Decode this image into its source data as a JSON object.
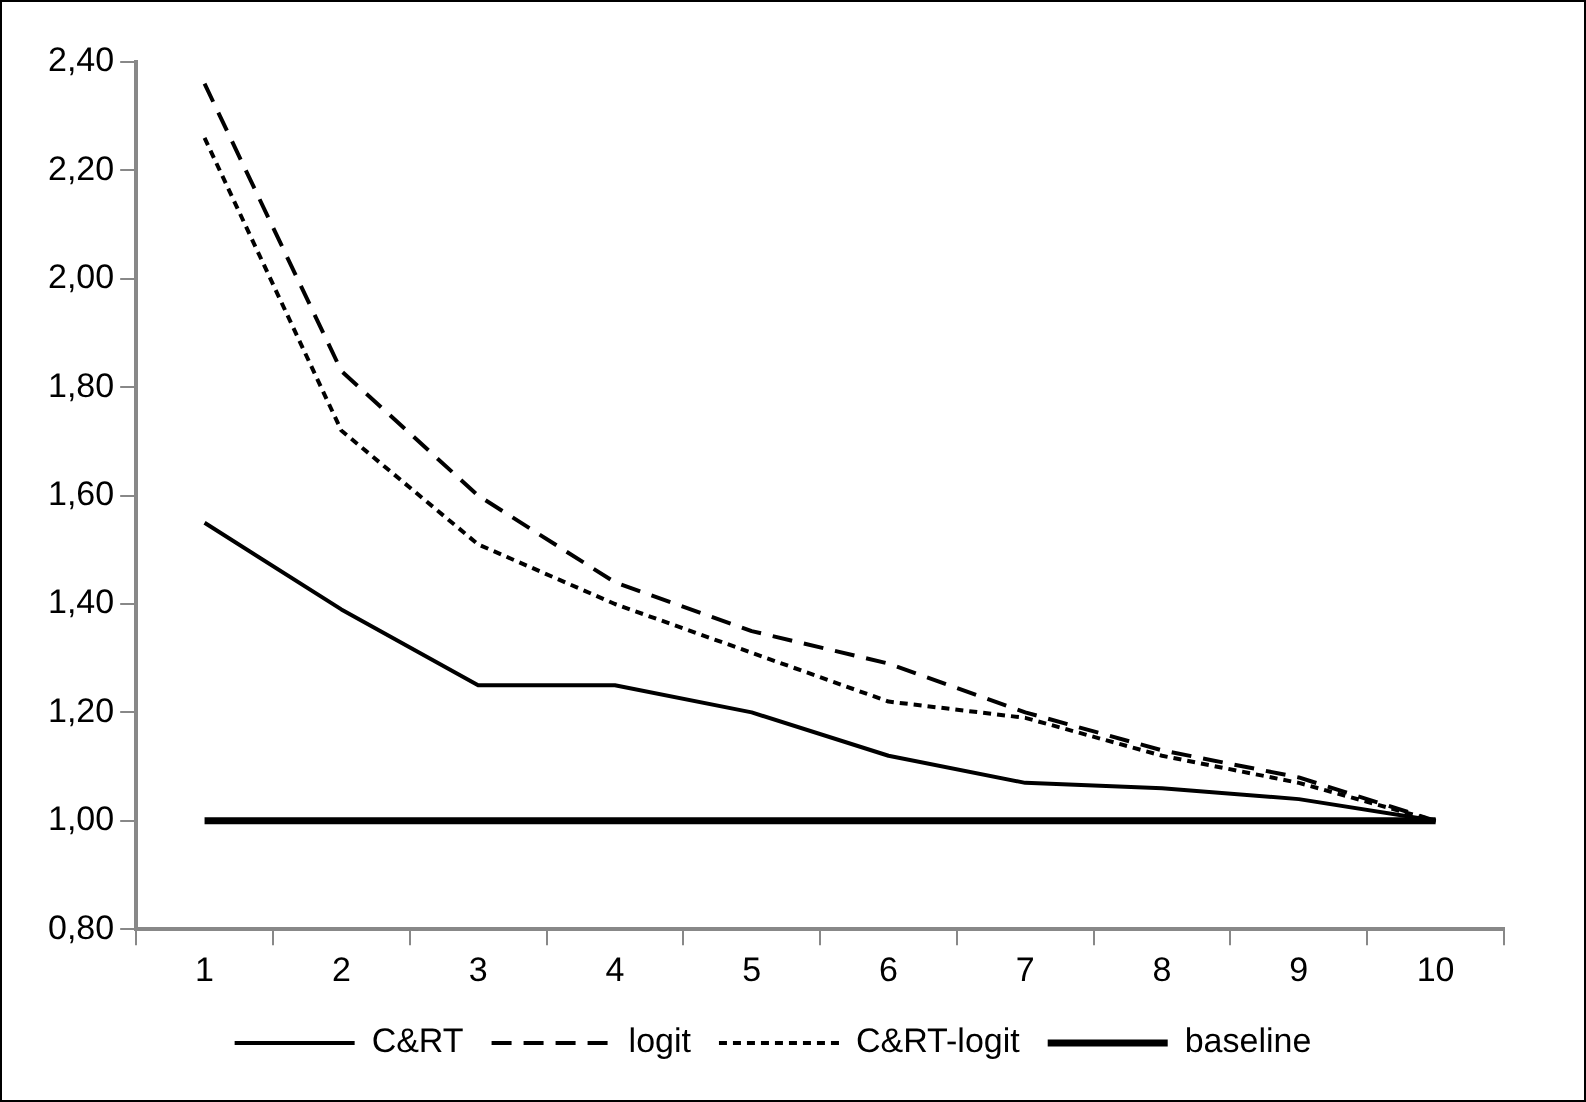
{
  "chart_data": {
    "type": "line",
    "categories": [
      "1",
      "2",
      "3",
      "4",
      "5",
      "6",
      "7",
      "8",
      "9",
      "10"
    ],
    "series": [
      {
        "name": "C&RT",
        "color": "#000000",
        "line_style": "solid",
        "values": [
          1.55,
          1.39,
          1.25,
          1.25,
          1.2,
          1.12,
          1.07,
          1.06,
          1.04,
          1.0
        ]
      },
      {
        "name": "logit",
        "color": "#000000",
        "line_style": "dashed",
        "values": [
          2.36,
          1.83,
          1.6,
          1.44,
          1.35,
          1.29,
          1.2,
          1.13,
          1.08,
          1.0
        ]
      },
      {
        "name": "C&RT-logit",
        "color": "#000000",
        "line_style": "dotted",
        "values": [
          2.26,
          1.72,
          1.51,
          1.4,
          1.31,
          1.22,
          1.19,
          1.12,
          1.07,
          1.0
        ]
      },
      {
        "name": "baseline",
        "color": "#000000",
        "line_style": "solid",
        "values": [
          1.0,
          1.0,
          1.0,
          1.0,
          1.0,
          1.0,
          1.0,
          1.0,
          1.0,
          1.0
        ]
      }
    ],
    "ylim": [
      0.8,
      2.4
    ],
    "yticks": [
      {
        "value": 0.8,
        "label": "0,80"
      },
      {
        "value": 1.0,
        "label": "1,00"
      },
      {
        "value": 1.2,
        "label": "1,20"
      },
      {
        "value": 1.4,
        "label": "1,40"
      },
      {
        "value": 1.6,
        "label": "1,60"
      },
      {
        "value": 1.8,
        "label": "1,80"
      },
      {
        "value": 2.0,
        "label": "2,00"
      },
      {
        "value": 2.2,
        "label": "2,20"
      },
      {
        "value": 2.4,
        "label": "2,40"
      }
    ],
    "grid": false,
    "legend": "bottom",
    "marker": "none"
  }
}
